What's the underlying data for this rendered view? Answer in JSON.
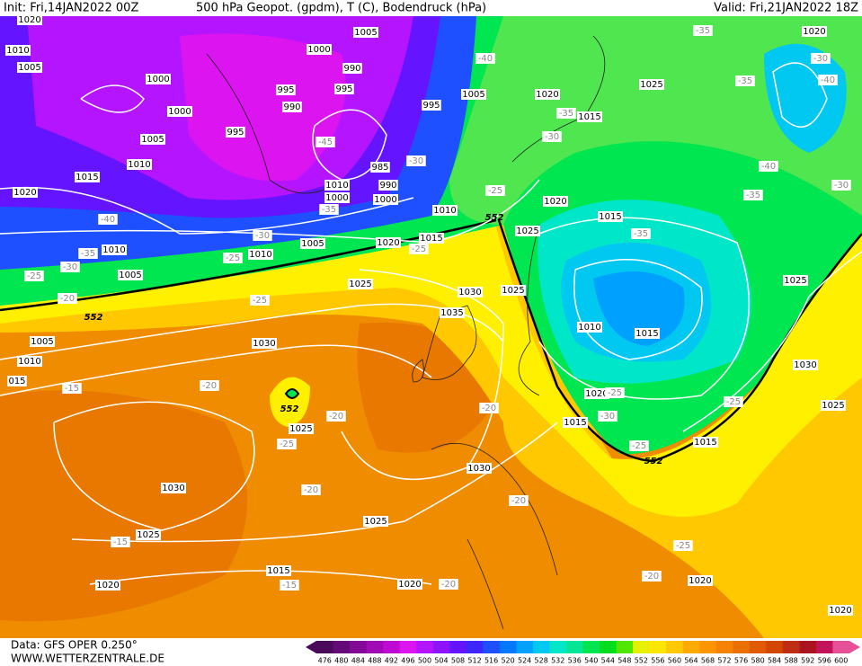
{
  "header": {
    "init": "Init: Fri,14JAN2022 00Z",
    "title": "500 hPa Geopot. (gpdm), T (C), Bodendruck (hPa)",
    "valid": "Valid: Fri,21JAN2022 18Z"
  },
  "footer": {
    "data": "Data: GFS OPER 0.250°",
    "url": "WWW.WETTERZENTRALE.DE"
  },
  "legend": {
    "values": [
      476,
      480,
      484,
      488,
      492,
      496,
      500,
      504,
      508,
      512,
      516,
      520,
      524,
      528,
      532,
      536,
      540,
      544,
      548,
      552,
      556,
      560,
      564,
      568,
      572,
      576,
      580,
      584,
      588,
      592,
      596,
      600
    ],
    "colors": [
      "#4a0a5a",
      "#640a78",
      "#820a96",
      "#a00ab4",
      "#be0ad2",
      "#dc14f0",
      "#b414ff",
      "#8c14ff",
      "#6414ff",
      "#3c28ff",
      "#1e50ff",
      "#0078ff",
      "#00a0ff",
      "#00c8f0",
      "#00e6c8",
      "#00e696",
      "#00e650",
      "#00dc1e",
      "#50e600",
      "#e6f000",
      "#ffe600",
      "#ffc800",
      "#ffaa00",
      "#ff9600",
      "#f58200",
      "#eb6e00",
      "#e15a00",
      "#d24600",
      "#be2d14",
      "#aa141e",
      "#c3145a",
      "#e65096"
    ]
  },
  "map": {
    "isobar_labels": [
      "1020",
      "1010",
      "1005",
      "1000",
      "1000",
      "1005",
      "1010",
      "1015",
      "1020",
      "995",
      "995",
      "990",
      "995",
      "990",
      "1000",
      "1005",
      "985",
      "990",
      "1000",
      "1010",
      "1000",
      "995",
      "1005",
      "1020",
      "1025",
      "1015",
      "1020",
      "1010",
      "1020",
      "1015",
      "1005",
      "1010",
      "1010",
      "1005",
      "1025",
      "1030",
      "1025",
      "1035",
      "1025",
      "1020",
      "1015",
      "1010",
      "1015",
      "1025",
      "1030",
      "1025",
      "1020",
      "1015",
      "1015",
      "1005",
      "1010",
      "015",
      "1030",
      "1025",
      "1030",
      "1030",
      "1025",
      "1025",
      "1015",
      "1020",
      "1020",
      "1020",
      "1020"
    ],
    "temperature_labels": [
      "-35",
      "-30",
      "-40",
      "-35",
      "-40",
      "-35",
      "-30",
      "-45",
      "-30",
      "-25",
      "-40",
      "-35",
      "-30",
      "-25",
      "-20",
      "-30",
      "-25",
      "-25",
      "-25",
      "-35",
      "-40",
      "-35",
      "-30",
      "-15",
      "-20",
      "-20",
      "-25",
      "-20",
      "-20",
      "-20",
      "-15",
      "-15",
      "-20",
      "-25",
      "-20",
      "-25",
      "-25",
      "-30",
      "-25",
      "-35"
    ],
    "height_labels": [
      "552",
      "552",
      "552",
      "552"
    ]
  }
}
